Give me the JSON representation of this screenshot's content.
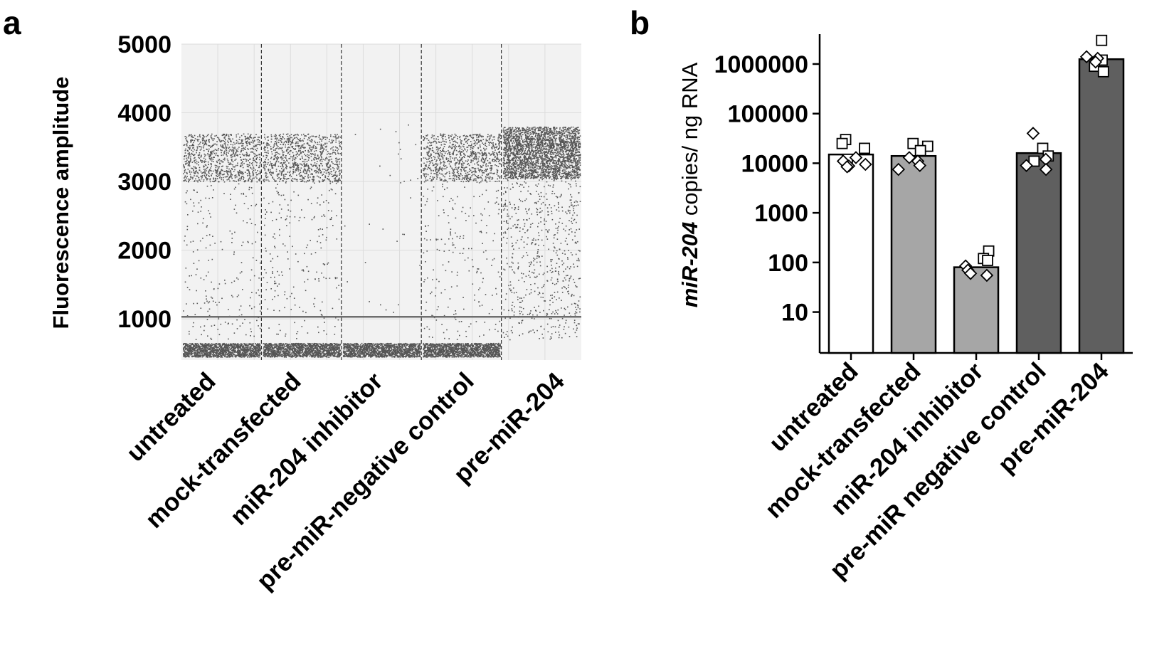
{
  "figure": {
    "panels": [
      "a",
      "b"
    ]
  },
  "chart_data": [
    {
      "panel": "a",
      "type": "scatter",
      "ylabel": "Fluorescence amplitude",
      "xlabel": "",
      "ylim": [
        400,
        5000
      ],
      "yticks": [
        1000,
        2000,
        3000,
        4000,
        5000
      ],
      "threshold": 1030,
      "grid": true,
      "categories": [
        "untreated",
        "mock-transfected",
        "miR-204 inhibitor",
        "pre-miR-negative control",
        "pre-miR-204"
      ],
      "droplet_clusters": [
        {
          "category": "untreated",
          "negative_band": [
            450,
            650
          ],
          "positive_band": [
            3000,
            3700
          ],
          "positive_density": "medium"
        },
        {
          "category": "mock-transfected",
          "negative_band": [
            450,
            650
          ],
          "positive_band": [
            3000,
            3700
          ],
          "positive_density": "medium"
        },
        {
          "category": "miR-204 inhibitor",
          "negative_band": [
            450,
            650
          ],
          "positive_band": null,
          "positive_density": "very low"
        },
        {
          "category": "pre-miR-negative control",
          "negative_band": [
            450,
            650
          ],
          "positive_band": [
            3000,
            3700
          ],
          "positive_density": "medium"
        },
        {
          "category": "pre-miR-204",
          "negative_band": null,
          "positive_band": [
            3050,
            3800
          ],
          "positive_density": "high"
        }
      ],
      "colors": {
        "droplet": "#555555",
        "background": "#f2f2f2",
        "grid": "#dcdcdc",
        "threshold": "#6e6e6e"
      }
    },
    {
      "panel": "b",
      "type": "bar",
      "ylabel_italic": "miR-204",
      "ylabel_rest": " copies/ ng RNA",
      "xlabel": "",
      "yscale": "log",
      "ylim": [
        1.5,
        4000000
      ],
      "yticks": [
        {
          "value": 10,
          "label": "10"
        },
        {
          "value": 100,
          "label": "100"
        },
        {
          "value": 1000,
          "label": "1000"
        },
        {
          "value": 10000,
          "label": "10000"
        },
        {
          "value": 100000,
          "label": "100000"
        },
        {
          "value": 1000000,
          "label": "1000000"
        }
      ],
      "categories": [
        "untreated",
        "mock-transfected",
        "miR-204 inhibitor",
        "pre-miR negative control",
        "pre-miR-204"
      ],
      "values": [
        15000,
        14000,
        80,
        16000,
        1250000
      ],
      "bar_colors": [
        "#ffffff",
        "#a6a6a6",
        "#a6a6a6",
        "#5f5f5f",
        "#5f5f5f"
      ],
      "points": [
        {
          "category": "untreated",
          "squares": [
            30000,
            25000,
            20000,
            12000
          ],
          "diamonds": [
            13000,
            11000,
            9500,
            8800,
            8500
          ]
        },
        {
          "category": "mock-transfected",
          "squares": [
            25000,
            22000,
            18000
          ],
          "diamonds": [
            13000,
            11000,
            9000,
            7500
          ]
        },
        {
          "category": "miR-204 inhibitor",
          "squares": [
            170,
            120,
            110
          ],
          "diamonds": [
            85,
            70,
            60,
            55
          ]
        },
        {
          "category": "pre-miR negative control",
          "squares": [
            20000,
            14000,
            11000
          ],
          "diamonds": [
            40000,
            12000,
            9000,
            7500
          ]
        },
        {
          "category": "pre-miR-204",
          "squares": [
            3000000,
            1200000,
            900000,
            700000
          ],
          "diamonds": [
            1400000,
            1300000,
            1100000
          ]
        }
      ]
    }
  ]
}
